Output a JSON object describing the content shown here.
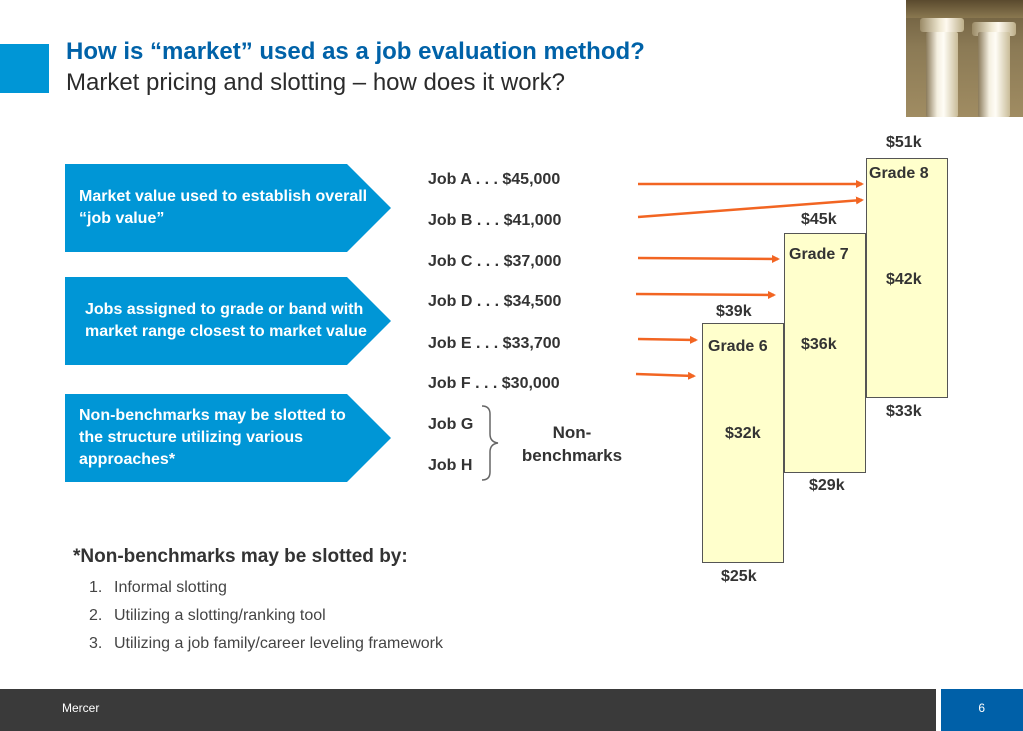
{
  "header": {
    "title": "How is “market” used as a job evaluation method?",
    "subtitle": "Market pricing and slotting – how does it work?"
  },
  "callouts": [
    {
      "text": "Market value used to establish overall “job value”"
    },
    {
      "text": "Jobs assigned to grade or band with market range closest to market value"
    },
    {
      "text": "Non-benchmarks may be slotted to the structure utilizing various approaches*"
    }
  ],
  "jobs": [
    "Job A . . . $45,000",
    "Job B . . . $41,000",
    "Job C . . . $37,000",
    "Job D . . . $34,500",
    "Job E . . . $33,700",
    "Job F . . . $30,000",
    "Job G",
    "Job H"
  ],
  "non_benchmarks_label": "Non-benchmarks",
  "grades": [
    {
      "name": "Grade 6",
      "max": "$39k",
      "mid": "$32k",
      "min": "$25k"
    },
    {
      "name": "Grade 7",
      "max": "$45k",
      "mid": "$36k",
      "min": "$29k"
    },
    {
      "name": "Grade 8",
      "max": "$51k",
      "mid": "$42k",
      "min": "$33k"
    }
  ],
  "notes": {
    "title": "*Non-benchmarks may be slotted by:",
    "items": [
      {
        "num": "1.",
        "text": "Informal slotting"
      },
      {
        "num": "2.",
        "text": "Utilizing a slotting/ranking tool"
      },
      {
        "num": "3.",
        "text": "Utilizing a job family/career leveling framework"
      }
    ]
  },
  "footer": {
    "brand": "Mercer",
    "page": "6"
  },
  "colors": {
    "accent_blue": "#0096d6",
    "title_blue": "#0062a8",
    "arrow_orange": "#f26522",
    "grade_fill": "#ffffcc",
    "footer_dark": "#3a3a3a",
    "page_blue": "#0060a8"
  }
}
